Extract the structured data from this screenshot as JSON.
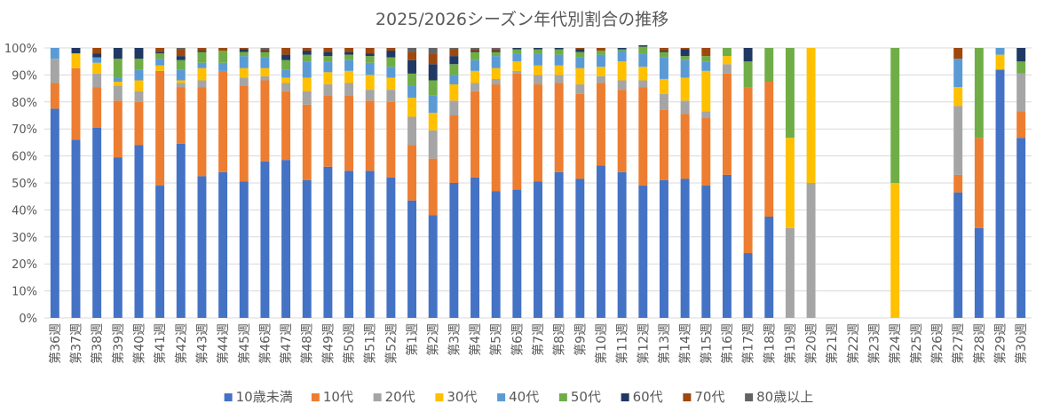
{
  "chart_data": {
    "type": "bar",
    "stacked": true,
    "title": "2025/2026シーズン年代別割合の推移",
    "ylim": [
      0,
      100
    ],
    "yticks": [
      "0%",
      "10%",
      "20%",
      "30%",
      "40%",
      "50%",
      "60%",
      "70%",
      "80%",
      "90%",
      "100%"
    ],
    "grid": true,
    "legend_position": "bottom",
    "categories": [
      "第36週",
      "第37週",
      "第38週",
      "第39週",
      "第40週",
      "第41週",
      "第42週",
      "第43週",
      "第44週",
      "第45週",
      "第46週",
      "第47週",
      "第48週",
      "第49週",
      "第50週",
      "第51週",
      "第52週",
      "第1週",
      "第2週",
      "第3週",
      "第4週",
      "第5週",
      "第6週",
      "第7週",
      "第8週",
      "第9週",
      "第10週",
      "第11週",
      "第12週",
      "第13週",
      "第14週",
      "第15週",
      "第16週",
      "第17週",
      "第18週",
      "第19週",
      "第20週",
      "第21週",
      "第22週",
      "第23週",
      "第24週",
      "第25週",
      "第26週",
      "第27週",
      "第28週",
      "第29週",
      "第30週"
    ],
    "series": [
      {
        "name": "10歳未満",
        "color": "#4472C4",
        "values": [
          77.5,
          66,
          70.5,
          59.5,
          64,
          49,
          64.5,
          52.5,
          54,
          50.5,
          58,
          58.5,
          51,
          56,
          54.5,
          54.5,
          52,
          43.5,
          38,
          50,
          52,
          47,
          47.5,
          50.5,
          54,
          51.5,
          56.5,
          54,
          49,
          51,
          51.5,
          49,
          53,
          24,
          37.5,
          0,
          0,
          0,
          0,
          0,
          0,
          0,
          0,
          46.5,
          33.3,
          92,
          66.7
        ]
      },
      {
        "name": "10代",
        "color": "#ED7D31",
        "values": [
          9.5,
          26.5,
          15,
          21,
          16,
          42.5,
          21,
          33,
          37.5,
          35.5,
          30,
          25.5,
          28,
          26.5,
          28,
          26,
          28,
          20.5,
          21,
          25,
          32,
          39.5,
          43,
          36,
          33,
          31.5,
          30.5,
          30.5,
          36.5,
          26,
          24,
          25,
          37.5,
          61.5,
          50,
          0,
          0,
          0,
          0,
          0,
          0,
          0,
          0,
          6.5,
          33.4,
          0,
          9.8
        ]
      },
      {
        "name": "20代",
        "color": "#A5A5A5",
        "values": [
          9,
          0,
          5,
          5.5,
          4,
          0,
          1.5,
          2.5,
          0,
          3,
          1.5,
          3,
          5,
          4,
          4.5,
          4,
          4.5,
          10.5,
          10.5,
          5.5,
          3,
          2,
          1,
          3.5,
          3,
          3.5,
          2.5,
          3.5,
          2.5,
          6,
          5,
          2.5,
          3.5,
          0,
          0,
          33.3,
          50,
          0,
          0,
          0,
          0,
          0,
          0,
          25.5,
          0,
          0,
          14
        ]
      },
      {
        "name": "30代",
        "color": "#FFC000",
        "values": [
          0,
          5.5,
          4,
          1.5,
          4,
          2,
          1,
          4.5,
          0,
          3.5,
          3,
          2,
          5,
          4.5,
          4.5,
          5.5,
          4.5,
          7,
          6.5,
          6,
          4.5,
          4,
          3.5,
          3.5,
          3.5,
          6,
          3.5,
          7,
          5,
          5.5,
          8.5,
          15,
          3,
          0,
          0,
          33.4,
          50,
          0,
          0,
          0,
          50,
          0,
          0,
          7,
          0,
          5.5,
          0
        ]
      },
      {
        "name": "40代",
        "color": "#5B9BD5",
        "values": [
          4,
          0,
          2,
          1.5,
          4,
          2.5,
          4,
          2,
          3,
          4.5,
          4,
          3,
          6,
          4,
          4,
          4.5,
          4,
          4.5,
          6.5,
          3.5,
          4,
          4.5,
          3,
          4.5,
          4,
          4,
          4.5,
          4,
          5,
          8,
          6.5,
          3.5,
          0,
          0,
          0,
          0,
          0,
          0,
          0,
          0,
          0,
          0,
          0,
          10.5,
          0,
          2.5,
          0
        ]
      },
      {
        "name": "50代",
        "color": "#70AD47",
        "values": [
          0,
          0,
          0,
          7,
          4,
          2,
          3.5,
          4,
          4.5,
          1.5,
          2,
          3.5,
          2.5,
          2,
          2,
          2.5,
          3.5,
          4.5,
          5.5,
          4,
          3,
          1.5,
          1.5,
          1.5,
          2,
          2,
          1.5,
          0.5,
          2.5,
          2,
          1.5,
          2,
          3,
          9.5,
          12.5,
          33.3,
          0,
          0,
          0,
          0,
          50,
          0,
          0,
          0,
          33.3,
          0,
          4.5
        ]
      },
      {
        "name": "60代",
        "color": "#203864",
        "values": [
          0,
          2,
          1.5,
          4,
          4,
          0.5,
          1.5,
          0.5,
          0,
          1,
          0.5,
          2,
          1.5,
          1.5,
          1,
          1,
          2.5,
          5,
          6,
          3,
          0.5,
          0.5,
          0.5,
          0.5,
          0.5,
          1,
          0,
          0.5,
          0.5,
          0.5,
          2.5,
          0,
          0,
          5,
          0,
          0,
          0,
          0,
          0,
          0,
          0,
          0,
          0,
          0,
          0,
          0,
          5
        ]
      },
      {
        "name": "70代",
        "color": "#9E480E",
        "values": [
          0,
          0,
          2,
          0,
          0,
          1.5,
          2.5,
          1,
          1,
          0.5,
          0.5,
          2.5,
          1,
          1.5,
          1.5,
          2,
          1,
          3,
          4,
          2.5,
          0.5,
          0.5,
          0,
          0,
          0,
          0.5,
          1,
          0,
          0,
          1,
          0.5,
          3,
          0,
          0,
          0,
          0,
          0,
          0,
          0,
          0,
          0,
          0,
          0,
          4,
          0,
          0,
          0
        ]
      },
      {
        "name": "80歳以上",
        "color": "#636363",
        "values": [
          0,
          0,
          0,
          0,
          0,
          0,
          0.5,
          0,
          0,
          0,
          0.5,
          0,
          0,
          0,
          0,
          0,
          0,
          1.5,
          2,
          0.5,
          0.5,
          0.5,
          0,
          0,
          0,
          0,
          0,
          0,
          0,
          0,
          0,
          0,
          0,
          0,
          0,
          0,
          0,
          0,
          0,
          0,
          0,
          0,
          0,
          0,
          0,
          0,
          0
        ]
      }
    ]
  }
}
